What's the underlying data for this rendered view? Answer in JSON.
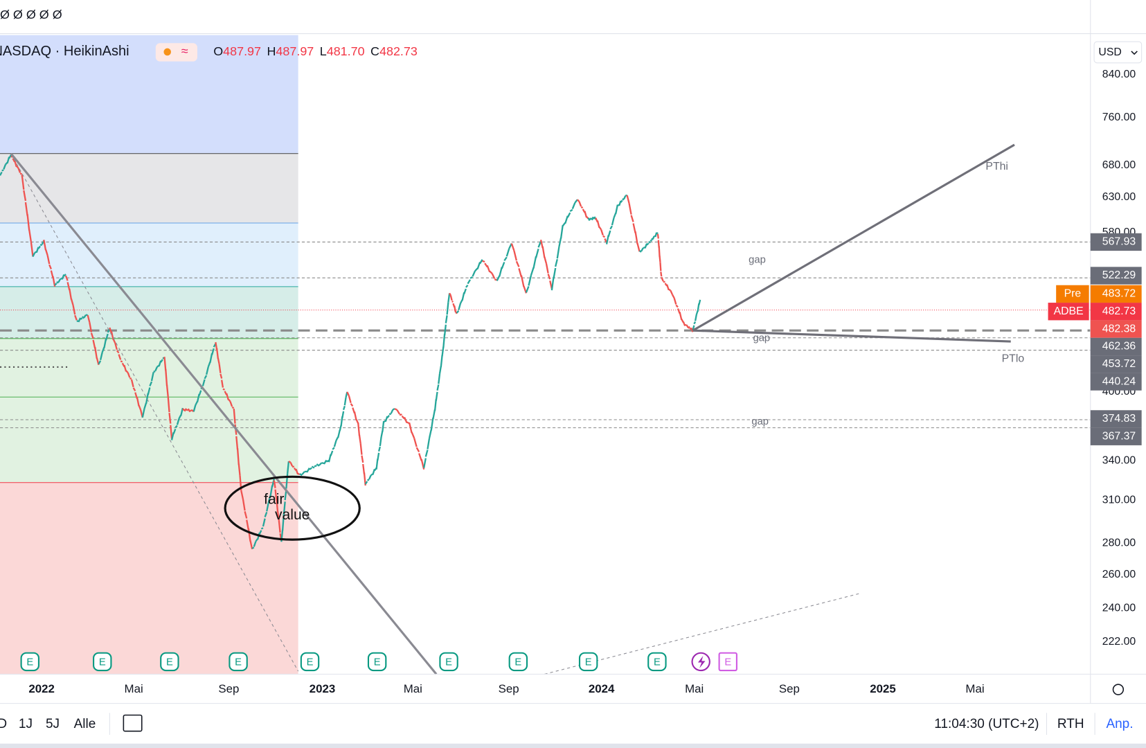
{
  "toolbar": {
    "icons": "Ø Ø Ø Ø Ø"
  },
  "legend": {
    "symbol": "NASDAQ · HeikinAshi",
    "open_label": "O",
    "open": "487.97",
    "high_label": "H",
    "high": "487.97",
    "low_label": "L",
    "low": "481.70",
    "close_label": "C",
    "close": "482.73"
  },
  "currency": "USD",
  "price_axis": [
    "840.00",
    "760.00",
    "680.00",
    "630.00",
    "580.00",
    "400.00",
    "340.00",
    "310.00",
    "280.00",
    "260.00",
    "240.00",
    "222.00"
  ],
  "price_badges": [
    {
      "label": "567.93"
    },
    {
      "label": "522.29"
    },
    {
      "tag": "Pre",
      "label": "483.72"
    },
    {
      "tag": "ADBE",
      "label": "482.73"
    },
    {
      "label": "482.38"
    },
    {
      "label": "462.36"
    },
    {
      "label": "453.72"
    },
    {
      "label": "440.24"
    },
    {
      "label": "374.83"
    },
    {
      "label": "367.37"
    }
  ],
  "time_axis": [
    "2022",
    "Mai",
    "Sep",
    "2023",
    "Mai",
    "Sep",
    "2024",
    "Mai",
    "Sep",
    "2025",
    "Mai"
  ],
  "annotations": [
    "gap",
    "gap",
    "gap",
    "PThi",
    "PTlo",
    "fair",
    "value"
  ],
  "earnings": [
    "E",
    "E",
    "E",
    "E",
    "E",
    "E",
    "E",
    "E",
    "E",
    "E",
    "E"
  ],
  "bottom_bar": {
    "ranges": [
      "D",
      "1J",
      "5J",
      "Alle"
    ],
    "clock": "11:04:30 (UTC+2)",
    "session": "RTH",
    "adjust": "Anp."
  }
}
